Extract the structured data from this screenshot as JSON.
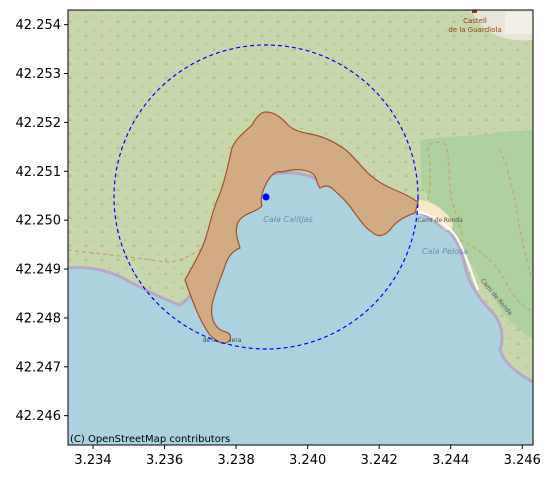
{
  "map": {
    "x_ticks": [
      "3.234",
      "3.236",
      "3.238",
      "3.240",
      "3.242",
      "3.244",
      "3.246"
    ],
    "y_ticks": [
      "42.254",
      "42.253",
      "42.252",
      "42.251",
      "42.250",
      "42.249",
      "42.248",
      "42.247",
      "42.246"
    ],
    "xlim": [
      3.2333,
      3.2463
    ],
    "ylim": [
      42.2454,
      42.2543
    ],
    "attribution": "(C) OpenStreetMap contributors",
    "place_labels": {
      "castell": "Castell",
      "guardiola": "de la Guardiola",
      "cala_calitjas": "Cala Calitjas",
      "cala_pelosa": "Cala Pelosa",
      "cami_ronda_1": "Camí de Ronda",
      "cami_ronda_2": "Camí de Ronda",
      "punta": "de la Figuera"
    },
    "marker": {
      "lon": 3.2388,
      "lat": 42.2505,
      "color": "#0000ff"
    },
    "circle": {
      "center_lon": 3.2388,
      "center_lat": 42.2505,
      "color": "#0000ff",
      "style": "dashed"
    },
    "polygon": {
      "fill": "#d2ab82",
      "stroke": "#a0522d"
    },
    "colors": {
      "sea": "#aad3df",
      "land": "#c8d7ab",
      "meadow": "#add19e",
      "beach": "#f5e9c6",
      "coast": "#b8a8c8",
      "path": "#c9a66b",
      "building": "#f2efe9"
    }
  }
}
